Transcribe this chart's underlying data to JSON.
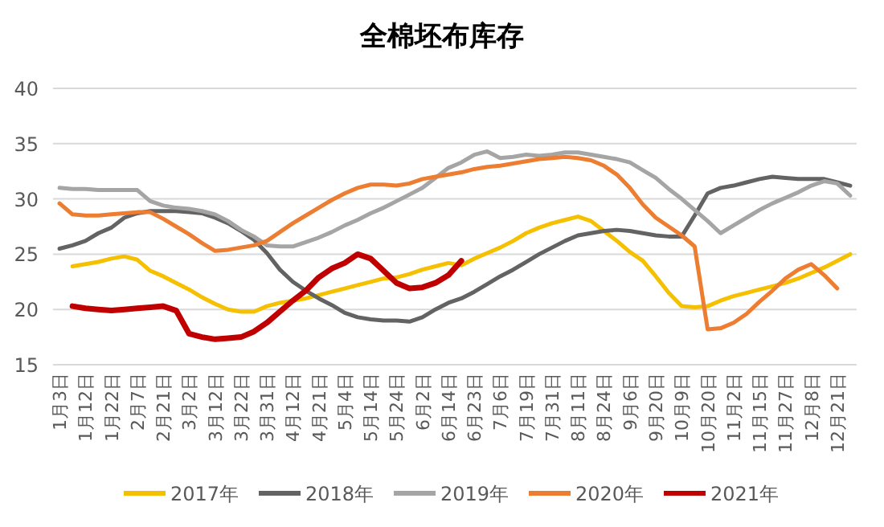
{
  "chart_data": {
    "type": "line",
    "title": "全棉坯布库存",
    "categories": [
      "1月3日",
      null,
      "1月12日",
      null,
      "1月22日",
      null,
      "2月7日",
      null,
      "2月21日",
      null,
      "3月2日",
      null,
      "3月12日",
      null,
      "3月22日",
      null,
      "3月31日",
      null,
      "4月12日",
      null,
      "4月21日",
      null,
      "5月4日",
      null,
      "5月14日",
      null,
      "5月24日",
      null,
      "6月2日",
      null,
      "6月14日",
      null,
      "6月23日",
      null,
      "7月6日",
      null,
      "7月19日",
      null,
      "7月31日",
      null,
      "8月11日",
      null,
      "8月24日",
      null,
      "9月6日",
      null,
      "9月20日",
      null,
      "10月9日",
      null,
      "10月20日",
      null,
      "11月2日",
      null,
      "11月15日",
      null,
      "11月27日",
      null,
      "12月8日",
      null,
      "12月21日",
      null
    ],
    "series": [
      {
        "name": "2017年",
        "color": "#f5c000",
        "values": [
          null,
          23.9,
          24.1,
          24.3,
          24.6,
          24.8,
          24.5,
          23.5,
          23.0,
          22.4,
          21.8,
          21.1,
          20.5,
          20.0,
          19.8,
          19.8,
          20.3,
          20.6,
          20.8,
          21.0,
          21.3,
          21.6,
          21.9,
          22.2,
          22.5,
          22.8,
          22.9,
          23.2,
          23.6,
          23.9,
          24.2,
          24.0,
          24.6,
          25.1,
          25.6,
          26.2,
          26.9,
          27.4,
          27.8,
          28.1,
          28.4,
          28.0,
          27.1,
          26.2,
          25.2,
          24.4,
          23.0,
          21.5,
          20.3,
          20.2,
          20.3,
          20.8,
          21.2,
          21.5,
          21.8,
          22.1,
          22.4,
          22.8,
          23.3,
          23.8,
          24.4,
          25.0
        ]
      },
      {
        "name": "2018年",
        "color": "#636363",
        "values": [
          25.5,
          25.8,
          26.2,
          26.9,
          27.4,
          28.3,
          28.7,
          28.9,
          28.9,
          28.9,
          28.8,
          28.7,
          28.3,
          27.8,
          27.1,
          26.3,
          25.1,
          23.6,
          22.5,
          21.7,
          21.0,
          20.4,
          19.7,
          19.3,
          19.1,
          19.0,
          19.0,
          18.9,
          19.3,
          20.0,
          20.6,
          21.0,
          21.6,
          22.3,
          23.0,
          23.6,
          24.3,
          25.0,
          25.6,
          26.2,
          26.7,
          26.9,
          27.1,
          27.2,
          27.1,
          26.9,
          26.7,
          26.6,
          26.6,
          28.5,
          30.5,
          31.0,
          31.2,
          31.5,
          31.8,
          32.0,
          31.9,
          31.8,
          31.8,
          31.8,
          31.5,
          31.2
        ]
      },
      {
        "name": "2019年",
        "color": "#a5a5a5",
        "values": [
          31.0,
          30.9,
          30.9,
          30.8,
          30.8,
          30.8,
          30.8,
          29.8,
          29.4,
          29.2,
          29.1,
          28.9,
          28.6,
          28.0,
          27.2,
          26.6,
          25.8,
          25.7,
          25.7,
          26.1,
          26.5,
          27.0,
          27.6,
          28.1,
          28.7,
          29.2,
          29.8,
          30.4,
          31.0,
          31.9,
          32.8,
          33.3,
          34.0,
          34.3,
          33.7,
          33.8,
          34.0,
          33.9,
          34.0,
          34.2,
          34.2,
          34.0,
          33.8,
          33.6,
          33.3,
          32.6,
          31.9,
          30.9,
          30.0,
          29.0,
          28.0,
          26.9,
          27.6,
          28.3,
          29.0,
          29.6,
          30.1,
          30.6,
          31.2,
          31.6,
          31.4,
          30.3
        ]
      },
      {
        "name": "2020年",
        "color": "#ed7d31",
        "values": [
          29.6,
          28.6,
          28.5,
          28.5,
          28.6,
          28.7,
          28.8,
          28.8,
          28.2,
          27.5,
          26.8,
          26.0,
          25.3,
          25.4,
          25.6,
          25.8,
          26.2,
          27.0,
          27.8,
          28.5,
          29.2,
          29.9,
          30.5,
          31.0,
          31.3,
          31.3,
          31.2,
          31.4,
          31.8,
          32.0,
          32.2,
          32.4,
          32.7,
          32.9,
          33.0,
          33.2,
          33.4,
          33.6,
          33.7,
          33.8,
          33.7,
          33.5,
          33.0,
          32.2,
          31.0,
          29.5,
          28.3,
          27.5,
          26.7,
          25.7,
          18.2,
          18.3,
          18.8,
          19.6,
          20.7,
          21.7,
          22.8,
          23.6,
          24.1,
          23.1,
          21.9,
          null
        ]
      },
      {
        "name": "2021年",
        "color": "#c00000",
        "values": [
          null,
          20.3,
          20.1,
          20.0,
          19.9,
          20.0,
          20.1,
          20.2,
          20.3,
          19.9,
          17.8,
          17.5,
          17.3,
          17.4,
          17.5,
          18.0,
          18.8,
          19.8,
          20.8,
          21.7,
          22.9,
          23.7,
          24.2,
          25.0,
          24.6,
          23.5,
          22.4,
          21.9,
          22.0,
          22.4,
          23.1,
          24.4,
          null,
          null,
          null,
          null,
          null,
          null,
          null,
          null,
          null,
          null,
          null,
          null,
          null,
          null,
          null,
          null,
          null,
          null,
          null,
          null,
          null,
          null,
          null,
          null,
          null,
          null,
          null,
          null,
          null,
          null
        ]
      }
    ],
    "ylim": [
      15,
      40
    ],
    "yticks": [
      15,
      20,
      25,
      30,
      35,
      40
    ],
    "grid": "y",
    "legend": "bottom"
  }
}
